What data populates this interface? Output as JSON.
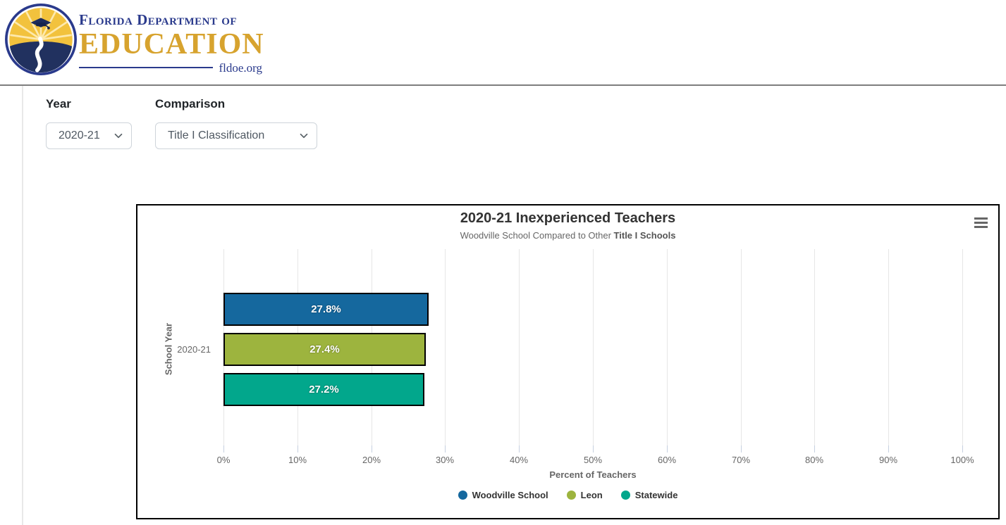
{
  "logo": {
    "line1": "Florida Department of",
    "line2": "EDUCATION",
    "line3": "fldoe.org"
  },
  "filters": {
    "year": {
      "label": "Year",
      "value": "2020-21"
    },
    "comparison": {
      "label": "Comparison",
      "value": "Title I Classification"
    }
  },
  "chart_data": {
    "type": "bar",
    "orientation": "horizontal",
    "title": "2020-21 Inexperienced Teachers",
    "subtitle": {
      "regular": "Woodville School Compared to Other ",
      "bold": "Title I Schools"
    },
    "categories": [
      "2020-21"
    ],
    "series": [
      {
        "name": "Woodville School",
        "color": "#15689E",
        "values": [
          27.8
        ]
      },
      {
        "name": "Leon",
        "color": "#9DB43E",
        "values": [
          27.4
        ]
      },
      {
        "name": "Statewide",
        "color": "#02A78C",
        "values": [
          27.2
        ]
      }
    ],
    "data_labels": [
      "27.8%",
      "27.4%",
      "27.2%"
    ],
    "xlabel": "Percent of Teachers",
    "ylabel": "School Year",
    "xlim": [
      0,
      100
    ],
    "x_ticks": [
      "0%",
      "10%",
      "20%",
      "30%",
      "40%",
      "50%",
      "60%",
      "70%",
      "80%",
      "90%",
      "100%"
    ],
    "grid": true,
    "legend_position": "bottom"
  }
}
